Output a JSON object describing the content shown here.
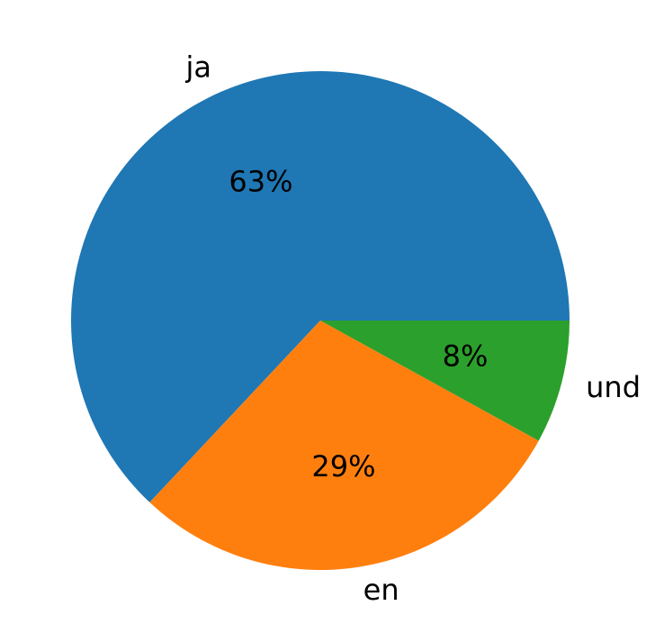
{
  "chart_data": {
    "type": "pie",
    "categories": [
      "ja",
      "en",
      "und"
    ],
    "values": [
      63,
      29,
      8
    ],
    "value_labels": [
      "63%",
      "29%",
      "8%"
    ],
    "colors": [
      "#1f77b4",
      "#ff7f0e",
      "#2ca02c"
    ]
  }
}
